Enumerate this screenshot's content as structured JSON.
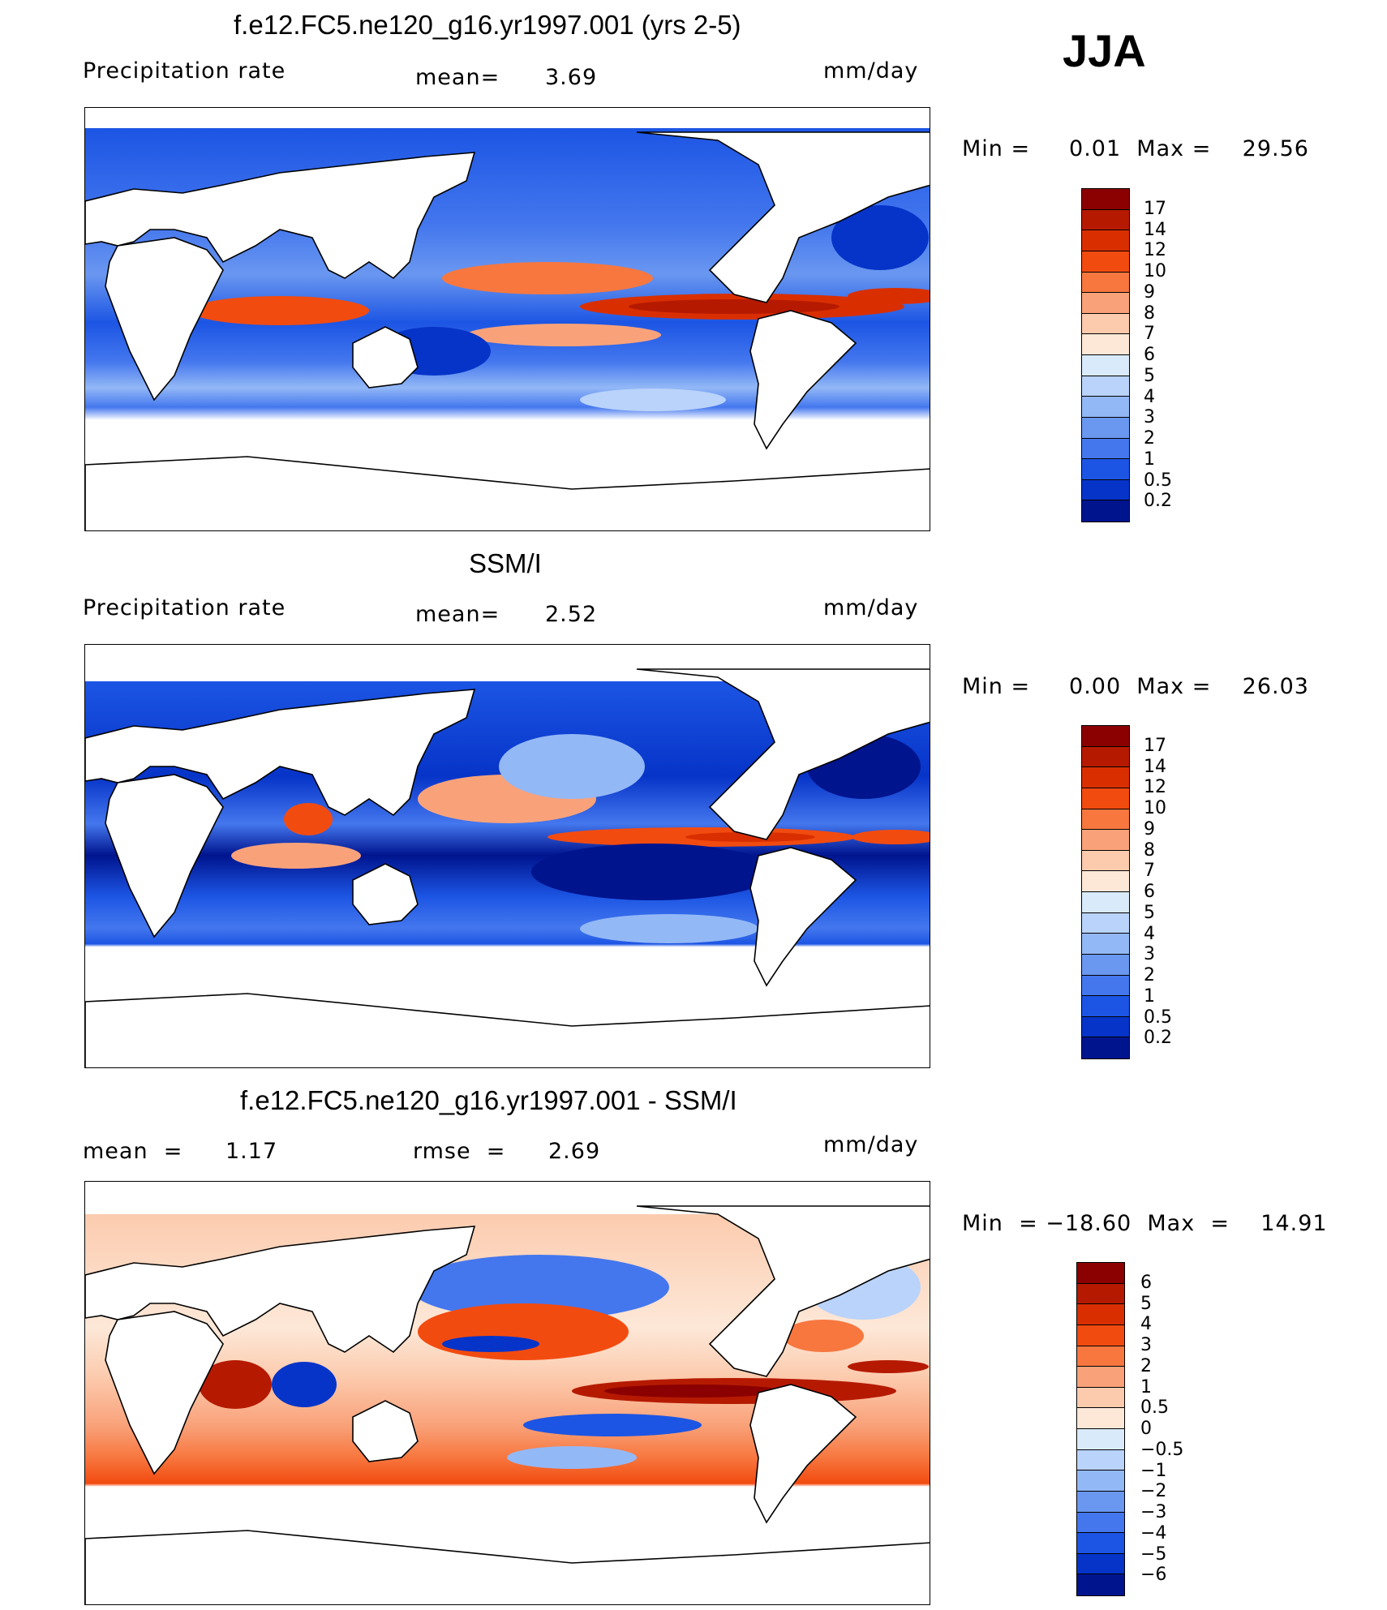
{
  "season": "JJA",
  "units": "mm/day",
  "panels": [
    {
      "title": "f.e12.FC5.ne120_g16.yr1997.001 (yrs 2-5)",
      "left_label": "Precipitation rate",
      "stat1_label": "mean=",
      "stat1_value": "3.69",
      "minmax": "Min =     0.01  Max =    29.56"
    },
    {
      "title": "SSM/I",
      "left_label": "Precipitation rate",
      "stat1_label": "mean=",
      "stat1_value": "2.52",
      "minmax": "Min =     0.00  Max =    26.03"
    },
    {
      "title": "f.e12.FC5.ne120_g16.yr1997.001 - SSM/I",
      "left_label": "mean  =",
      "left_value": "1.17",
      "stat1_label": "rmse  =",
      "stat1_value": "2.69",
      "minmax": "Min  = −18.60  Max  =    14.91"
    }
  ],
  "colorbars": {
    "precip": {
      "labels": [
        "17",
        "14",
        "12",
        "10",
        "9",
        "8",
        "7",
        "6",
        "5",
        "4",
        "3",
        "2",
        "1",
        "0.5",
        "0.2"
      ],
      "colors": [
        "#8b0000",
        "#b51a00",
        "#d92f00",
        "#f24b10",
        "#f7773f",
        "#f9a27a",
        "#fccbae",
        "#fde8d8",
        "#d9ebfb",
        "#b9d3fa",
        "#93b8f6",
        "#6a97f0",
        "#4477ee",
        "#1c55e4",
        "#0634c8",
        "#00148e"
      ]
    },
    "diff": {
      "labels": [
        "6",
        "5",
        "4",
        "3",
        "2",
        "1",
        "0.5",
        "0",
        "−0.5",
        "−1",
        "−2",
        "−3",
        "−4",
        "−5",
        "−6"
      ],
      "colors": [
        "#8b0000",
        "#b51a00",
        "#d92f00",
        "#f24b10",
        "#f7773f",
        "#f9a27a",
        "#fccbae",
        "#fde8d8",
        "#d9ebfb",
        "#b9d3fa",
        "#93b8f6",
        "#6a97f0",
        "#4477ee",
        "#1c55e4",
        "#0634c8",
        "#00148e"
      ]
    }
  },
  "chart_data": [
    {
      "type": "heatmap",
      "title": "f.e12.FC5.ne120_g16.yr1997.001 (yrs 2-5)",
      "variable": "Precipitation rate",
      "units": "mm/day",
      "mean": 3.69,
      "min": 0.01,
      "max": 29.56,
      "contour_levels": [
        0.2,
        0.5,
        1,
        2,
        3,
        4,
        5,
        6,
        7,
        8,
        9,
        10,
        12,
        14,
        17
      ]
    },
    {
      "type": "heatmap",
      "title": "SSM/I",
      "variable": "Precipitation rate",
      "units": "mm/day",
      "mean": 2.52,
      "min": 0.0,
      "max": 26.03,
      "contour_levels": [
        0.2,
        0.5,
        1,
        2,
        3,
        4,
        5,
        6,
        7,
        8,
        9,
        10,
        12,
        14,
        17
      ]
    },
    {
      "type": "heatmap",
      "title": "f.e12.FC5.ne120_g16.yr1997.001 - SSM/I",
      "units": "mm/day",
      "mean": 1.17,
      "rmse": 2.69,
      "min": -18.6,
      "max": 14.91,
      "contour_levels": [
        -6,
        -5,
        -4,
        -3,
        -2,
        -1,
        -0.5,
        0,
        0.5,
        1,
        2,
        3,
        4,
        5,
        6
      ]
    }
  ]
}
